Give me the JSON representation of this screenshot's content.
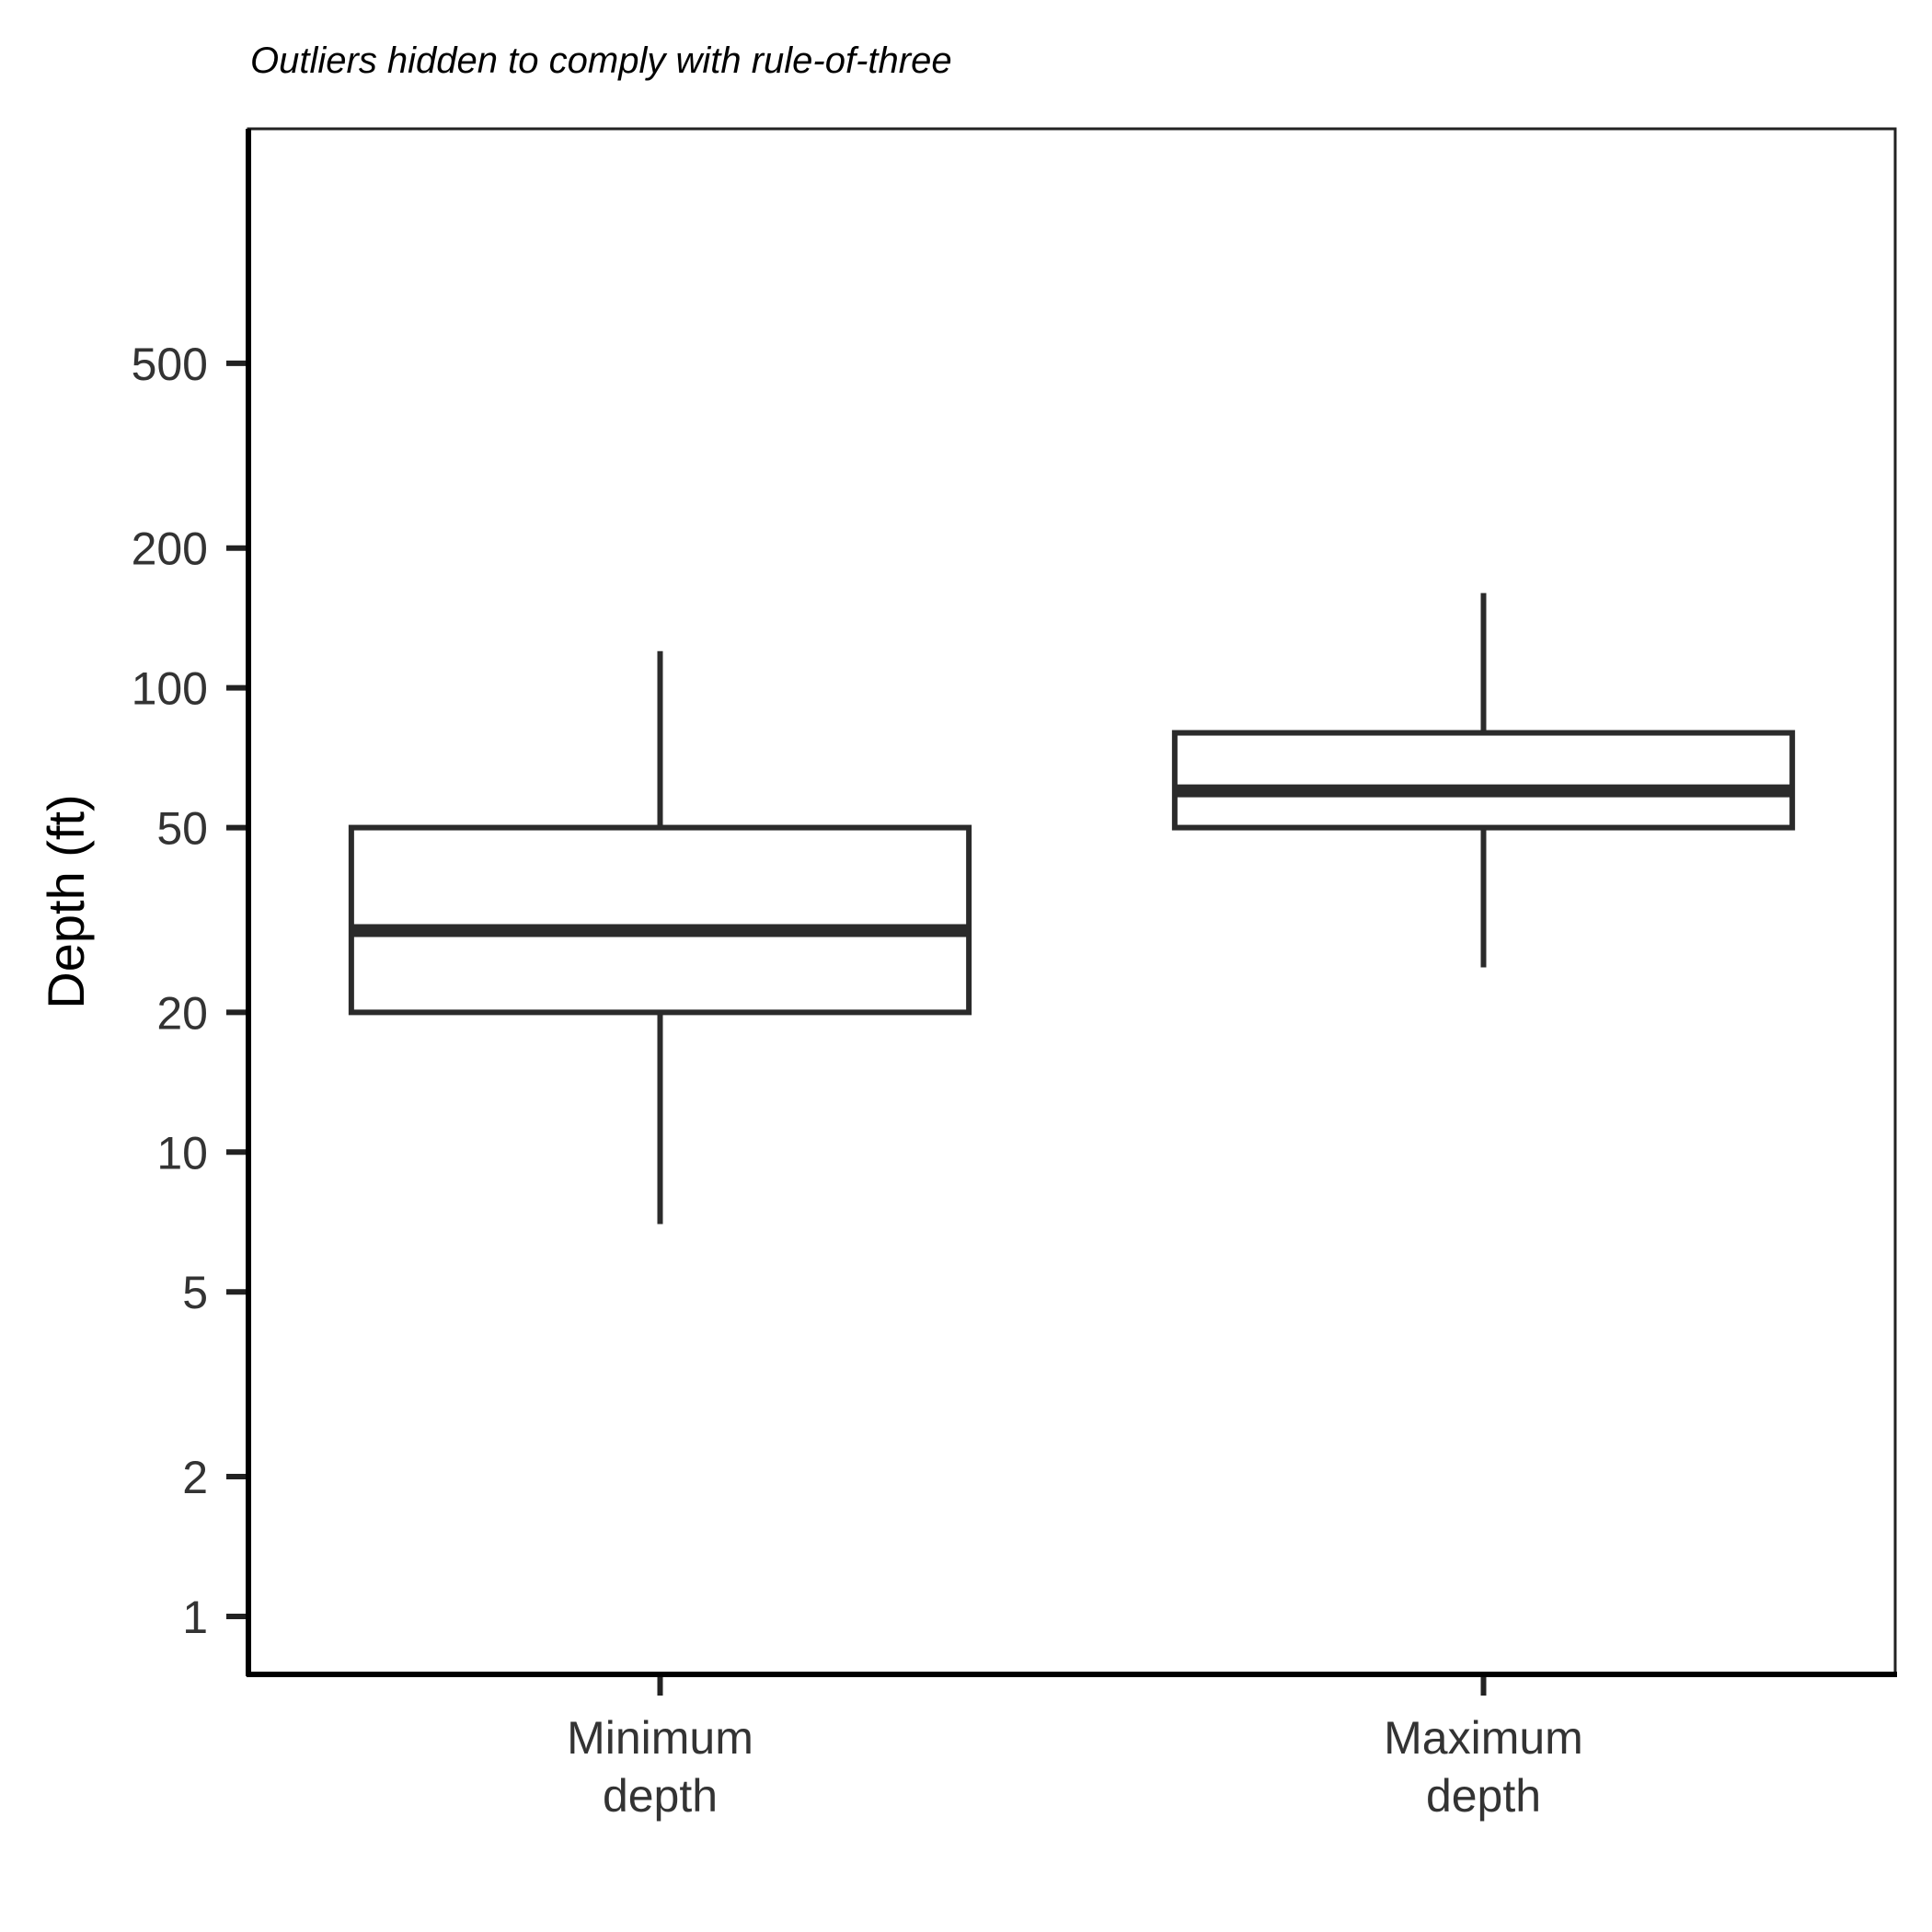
{
  "chart_data": {
    "type": "boxplot",
    "subtitle": "Outliers hidden to comply with rule-of-three",
    "title": "",
    "xlabel": "",
    "ylabel": "Depth (ft)",
    "y_scale": "log",
    "ylim": [
      0.75,
      1600
    ],
    "y_ticks": [
      1,
      2,
      5,
      10,
      20,
      50,
      100,
      200,
      500
    ],
    "y_tick_labels": [
      "1",
      "2",
      "5",
      "10",
      "20",
      "50",
      "100",
      "200",
      "500"
    ],
    "categories": [
      {
        "lines": [
          "Minimum",
          "depth"
        ]
      },
      {
        "lines": [
          "Maximum",
          "depth"
        ]
      }
    ],
    "boxes": [
      {
        "whisker_low": 7,
        "q1": 20,
        "median": 30,
        "q3": 50,
        "whisker_high": 120
      },
      {
        "whisker_low": 25,
        "q1": 50,
        "median": 60,
        "q3": 80,
        "whisker_high": 160
      }
    ],
    "grid": false,
    "legend": "none",
    "colors": {
      "box_stroke": "#2b2b2b",
      "box_fill": "#ffffff",
      "axis": "#000000",
      "tick_text": "#333333"
    }
  }
}
